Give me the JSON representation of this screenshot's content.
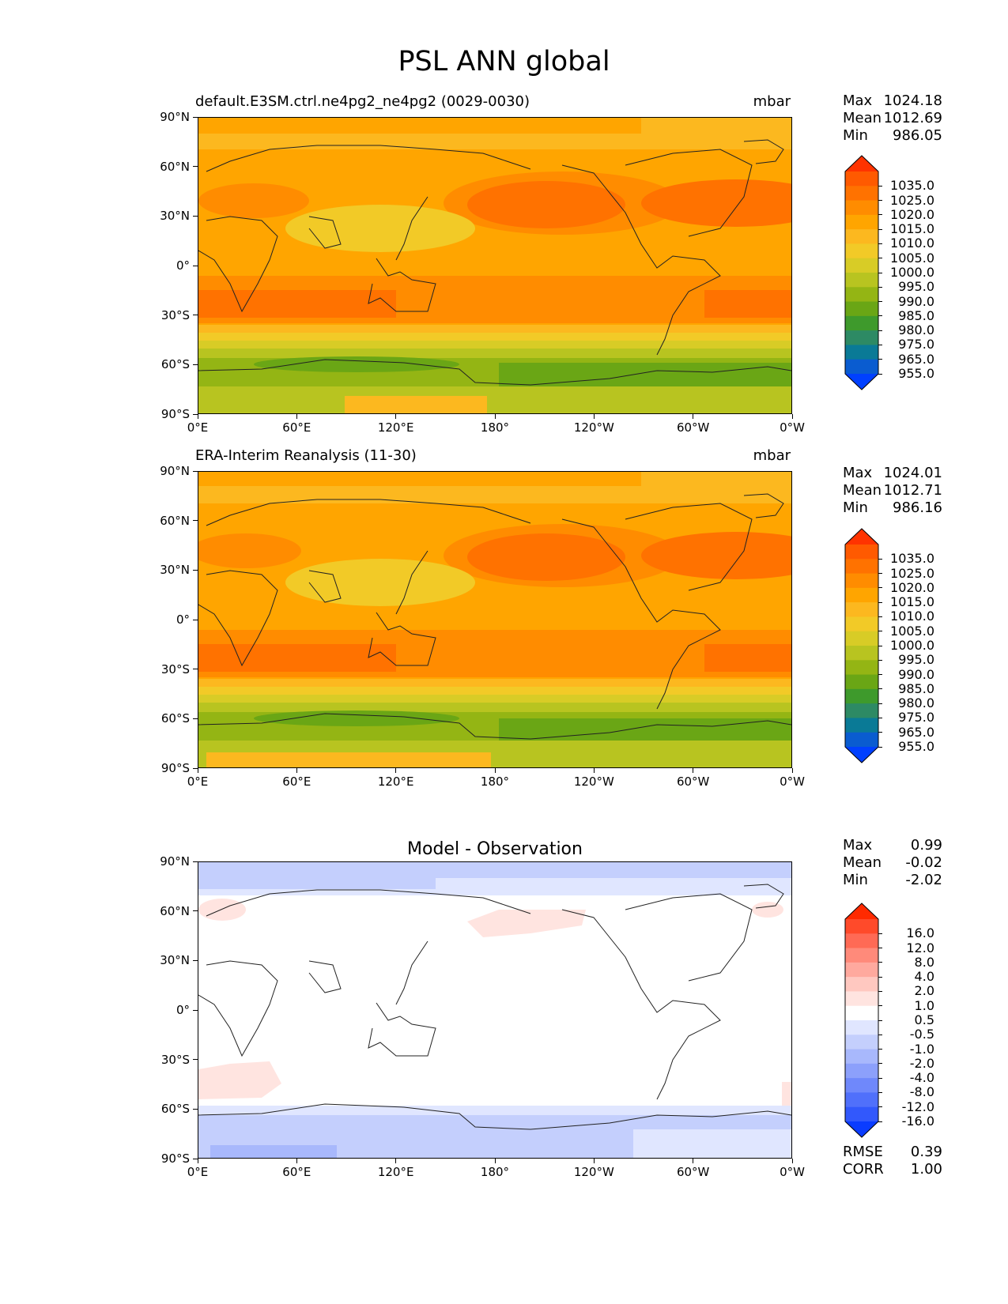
{
  "figure": {
    "title": "PSL ANN global"
  },
  "axes": {
    "y_ticks": [
      "90°N",
      "60°N",
      "30°N",
      "0°",
      "30°S",
      "60°S",
      "90°S"
    ],
    "x_ticks": [
      "0°E",
      "60°E",
      "120°E",
      "180°",
      "120°W",
      "60°W",
      "0°W"
    ]
  },
  "panels": [
    {
      "id": "model",
      "title": "default.E3SM.ctrl.ne4pg2_ne4pg2 (0029-0030)",
      "units": "mbar",
      "stats": [
        {
          "label": "Max",
          "value": "1024.18"
        },
        {
          "label": "Mean",
          "value": "1012.69"
        },
        {
          "label": "Min",
          "value": "986.05"
        }
      ]
    },
    {
      "id": "obs",
      "title": "ERA-Interim Reanalysis (11-30)",
      "units": "mbar",
      "stats": [
        {
          "label": "Max",
          "value": "1024.01"
        },
        {
          "label": "Mean",
          "value": "1012.71"
        },
        {
          "label": "Min",
          "value": "986.16"
        }
      ]
    },
    {
      "id": "diff",
      "title": "Model - Observation",
      "units": "",
      "stats": [
        {
          "label": "Max",
          "value": "0.99"
        },
        {
          "label": "Mean",
          "value": "-0.02"
        },
        {
          "label": "Min",
          "value": "-2.02"
        }
      ],
      "extra_stats": [
        {
          "label": "RMSE",
          "value": "0.39"
        },
        {
          "label": "CORR",
          "value": "1.00"
        }
      ]
    }
  ],
  "colorbars": {
    "psl": {
      "labels": [
        "1035.0",
        "1025.0",
        "1020.0",
        "1015.0",
        "1010.0",
        "1005.0",
        "1000.0",
        "995.0",
        "990.0",
        "985.0",
        "980.0",
        "975.0",
        "965.0",
        "955.0"
      ],
      "colors": [
        "#ff3300",
        "#ff5a00",
        "#ff7200",
        "#ff8c00",
        "#ffa500",
        "#fcb81f",
        "#f2ca27",
        "#d8cc26",
        "#b8c420",
        "#94b514",
        "#6aa615",
        "#3e9a2c",
        "#2d8a64",
        "#0a7a96",
        "#0a5cd0",
        "#0040ff"
      ]
    },
    "diff": {
      "labels": [
        "16.0",
        "12.0",
        "8.0",
        "4.0",
        "2.0",
        "1.0",
        "0.5",
        "-0.5",
        "-1.0",
        "-2.0",
        "-4.0",
        "-8.0",
        "-12.0",
        "-16.0"
      ],
      "colors": [
        "#ff2a00",
        "#ff4a2a",
        "#ff6a55",
        "#ff8a7a",
        "#ffa99e",
        "#ffc8c0",
        "#ffe4e0",
        "#ffffff",
        "#e0e6ff",
        "#c4cffd",
        "#a8b8fc",
        "#8ca0fb",
        "#6f88fb",
        "#5070fb",
        "#3258fc",
        "#0a3cff"
      ]
    }
  },
  "map_legend": {
    "psl_fields": {
      "model": [
        {
          "band": "90°N-80°N",
          "color": "#fcb81f"
        },
        {
          "band": "60°N-30°N",
          "color": "#ff7200"
        },
        {
          "band": "0°",
          "color": "#ff8c00"
        },
        {
          "band": "30°S",
          "color": "#ff7200"
        },
        {
          "band": "60°S",
          "color": "#6aa615"
        }
      ]
    }
  }
}
